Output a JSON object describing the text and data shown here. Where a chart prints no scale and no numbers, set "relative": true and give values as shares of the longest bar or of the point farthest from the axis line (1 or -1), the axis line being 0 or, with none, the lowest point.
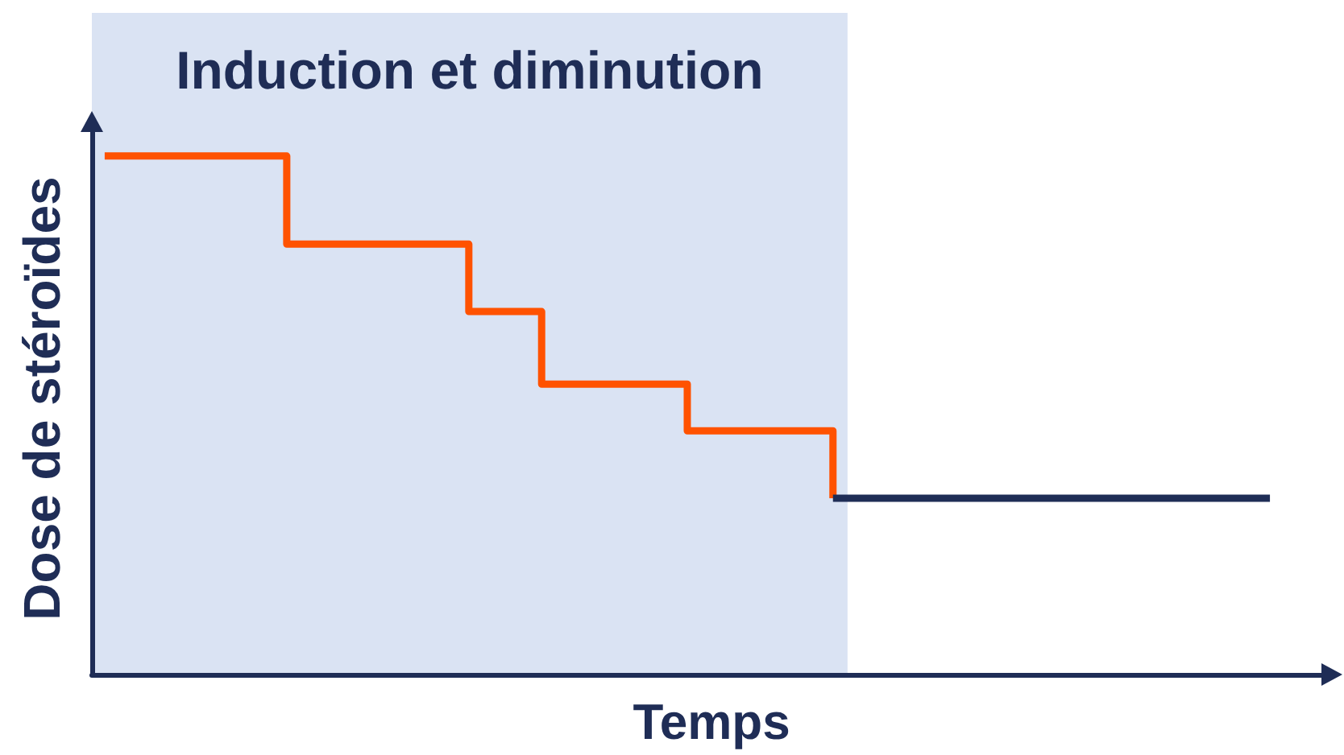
{
  "chart_data": {
    "type": "step",
    "relative": true,
    "categories": [
      null,
      null,
      null,
      null,
      null,
      null,
      null,
      null,
      null,
      null,
      null,
      null,
      null,
      null,
      null,
      null,
      null,
      null,
      null,
      null,
      null,
      null,
      null,
      null,
      null,
      null,
      null,
      null,
      null,
      null,
      null,
      null,
      null
    ],
    "series": [
      {
        "color": "#ff5200",
        "values": [
          1,
          1,
          1,
          1,
          1,
          0.83,
          0.83,
          0.83,
          0.83,
          0.83,
          0.7,
          0.7,
          0.56,
          0.56,
          0.56,
          0.56,
          0.47,
          0.47,
          0.47,
          0.47,
          0.34,
          null,
          null,
          null,
          null,
          null,
          null,
          null,
          null,
          null,
          null,
          null,
          null
        ]
      },
      {
        "color": "#1f2d56",
        "values": [
          null,
          null,
          null,
          null,
          null,
          null,
          null,
          null,
          null,
          null,
          null,
          null,
          null,
          null,
          null,
          null,
          null,
          null,
          null,
          null,
          0.34,
          0.34,
          0.34,
          0.34,
          0.34,
          0.34,
          0.34,
          0.34,
          0.34,
          0.34,
          0.34,
          0.34,
          0.34
        ]
      }
    ],
    "xlabel": "Temps",
    "ylabel": "Dose de stéroïdes",
    "annotations": [
      "Induction et diminution"
    ],
    "marker": "none"
  }
}
